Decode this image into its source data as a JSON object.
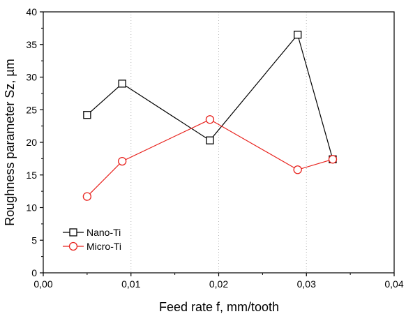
{
  "chart_data": {
    "type": "line",
    "xlabel": "Feed rate f, mm/tooth",
    "ylabel": "Roughness parameter Sz, µm",
    "xlim": [
      0,
      0.04
    ],
    "ylim": [
      0,
      40
    ],
    "x_ticks": [
      0,
      0.01,
      0.02,
      0.03,
      0.04
    ],
    "x_tick_labels": [
      "0,00",
      "0,01",
      "0,02",
      "0,03",
      "0,04"
    ],
    "y_ticks": [
      0,
      5,
      10,
      15,
      20,
      25,
      30,
      35,
      40
    ],
    "y_tick_labels": [
      "0",
      "5",
      "10",
      "15",
      "20",
      "25",
      "30",
      "35",
      "40"
    ],
    "grid": "vertical-dotted",
    "legend_position": "bottom-left",
    "series": [
      {
        "name": "Nano-Ti",
        "color": "#000000",
        "marker": "square",
        "x": [
          0.005,
          0.009,
          0.019,
          0.029,
          0.033
        ],
        "y": [
          24.2,
          29.0,
          20.3,
          36.5,
          17.4
        ]
      },
      {
        "name": "Micro-Ti",
        "color": "#e8211c",
        "marker": "circle",
        "x": [
          0.005,
          0.009,
          0.019,
          0.029,
          0.033
        ],
        "y": [
          11.7,
          17.1,
          23.5,
          15.8,
          17.4
        ]
      }
    ]
  }
}
